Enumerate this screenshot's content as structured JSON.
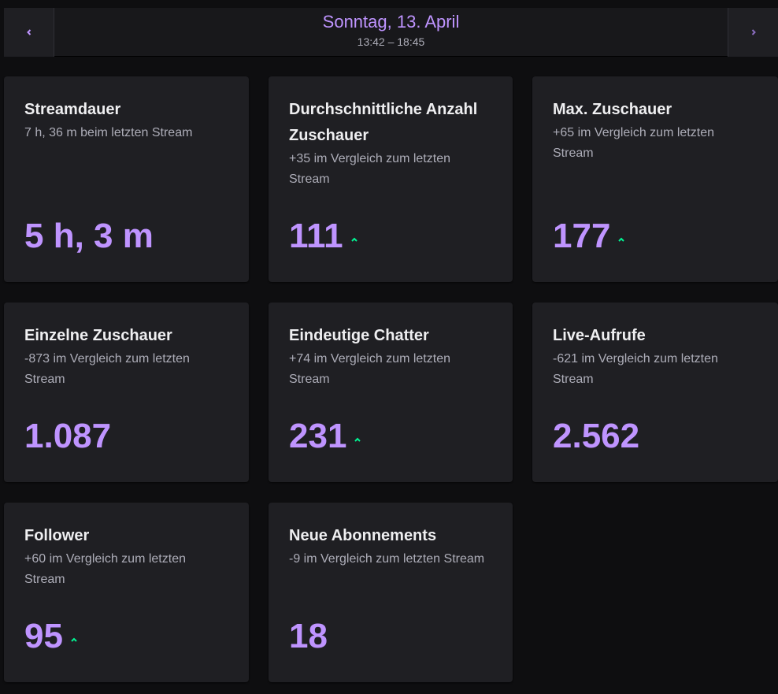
{
  "header": {
    "title": "Sonntag, 13. April",
    "time_range": "13:42 – 18:45"
  },
  "cards": [
    {
      "title": "Streamdauer",
      "subtitle": "7 h, 36 m beim letzten Stream",
      "value": "5 h, 3 m"
    },
    {
      "title": "Durchschnittliche Anzahl Zuschauer",
      "subtitle": "+35 im Vergleich zum letzten Stream",
      "value": "111",
      "trend": "up"
    },
    {
      "title": "Max. Zuschauer",
      "subtitle": "+65 im Vergleich zum letzten Stream",
      "value": "177",
      "trend": "up"
    },
    {
      "title": "Einzelne Zuschauer",
      "subtitle": "-873 im Vergleich zum letzten Stream",
      "value": "1.087"
    },
    {
      "title": "Eindeutige Chatter",
      "subtitle": "+74 im Vergleich zum letzten Stream",
      "value": "231",
      "trend": "up"
    },
    {
      "title": "Live-Aufrufe",
      "subtitle": "-621 im Vergleich zum letzten Stream",
      "value": "2.562"
    },
    {
      "title": "Follower",
      "subtitle": "+60 im Vergleich zum letzten Stream",
      "value": "95",
      "trend": "up"
    },
    {
      "title": "Neue Abonnements",
      "subtitle": "-9 im Vergleich zum letzten Stream",
      "value": "18"
    }
  ]
}
